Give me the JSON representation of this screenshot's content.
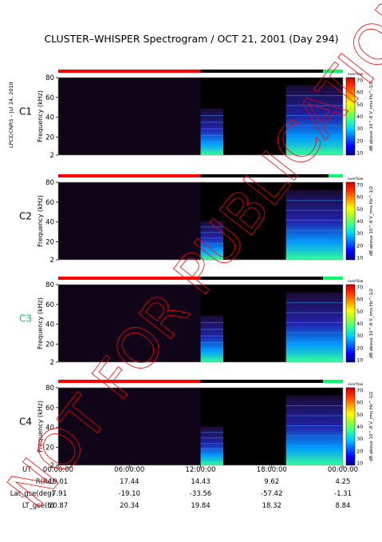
{
  "header": {
    "title": "CLUSTER–WHISPER Spectrogram / OCT 21, 2001 (Day 294)",
    "credit": "LPCE/CNRS – Jul 24, 2010"
  },
  "watermark": "NOT FOR PUBLICATION",
  "colors": {
    "background": "#000000",
    "status_red": "#ff0000",
    "status_black": "#000000",
    "status_green": "#00ff66",
    "c3_label": "#00cc66"
  },
  "chart_data": {
    "type": "heatmap",
    "xlabel": "UT",
    "ylabel": "Frequency (kHz)",
    "ylim": [
      2,
      80
    ],
    "yticks": [
      "2",
      "20",
      "40",
      "60",
      "80"
    ],
    "colorbar": {
      "label": "dB above 10^-8 V_rms Hz^-1/2",
      "ticks": [
        "10",
        "20",
        "30",
        "40",
        "50",
        "60",
        "70"
      ],
      "range": [
        10,
        70
      ],
      "overflow_label": "overflow"
    },
    "panels": [
      {
        "name": "C1",
        "label_color": "#000000",
        "status": [
          {
            "color": "#ff0000",
            "start": 0.0,
            "end": 0.5
          },
          {
            "color": "#000000",
            "start": 0.5,
            "end": 0.93
          },
          {
            "color": "#00ff66",
            "start": 0.93,
            "end": 1.0
          }
        ],
        "activity": [
          {
            "start": 0.5,
            "end": 0.58,
            "level": 0.6
          },
          {
            "start": 0.8,
            "end": 1.0,
            "level": 0.9
          }
        ]
      },
      {
        "name": "C2",
        "label_color": "#000000",
        "status": [
          {
            "color": "#ff0000",
            "start": 0.0,
            "end": 0.5
          },
          {
            "color": "#000000",
            "start": 0.5,
            "end": 0.95
          },
          {
            "color": "#00ff66",
            "start": 0.95,
            "end": 1.0
          }
        ],
        "activity": [
          {
            "start": 0.5,
            "end": 0.58,
            "level": 0.5
          },
          {
            "start": 0.8,
            "end": 1.0,
            "level": 0.9
          }
        ]
      },
      {
        "name": "C3",
        "label_color": "#00cc66",
        "status": [
          {
            "color": "#ff0000",
            "start": 0.0,
            "end": 0.5
          },
          {
            "color": "#000000",
            "start": 0.5,
            "end": 0.93
          },
          {
            "color": "#00ff66",
            "start": 0.93,
            "end": 1.0
          }
        ],
        "activity": [
          {
            "start": 0.5,
            "end": 0.58,
            "level": 0.6
          },
          {
            "start": 0.8,
            "end": 1.0,
            "level": 0.9
          }
        ]
      },
      {
        "name": "C4",
        "label_color": "#000000",
        "status": [
          {
            "color": "#ff0000",
            "start": 0.0,
            "end": 0.5
          },
          {
            "color": "#000000",
            "start": 0.5,
            "end": 0.93
          },
          {
            "color": "#00ff66",
            "start": 0.93,
            "end": 1.0
          }
        ],
        "activity": [
          {
            "start": 0.5,
            "end": 0.58,
            "level": 0.5
          },
          {
            "start": 0.8,
            "end": 1.0,
            "level": 0.9
          }
        ]
      }
    ],
    "x_ticks": [
      "00:00:00",
      "06:00:00",
      "12:00:00",
      "18:00:00",
      "00:00:00"
    ],
    "ephemeris": [
      {
        "label": "R(Re)",
        "values": [
          "19.01",
          "17.44",
          "14.43",
          "9.62",
          "4.25"
        ]
      },
      {
        "label": "Lat_gse(deg)",
        "values": [
          "-7.91",
          "-19.10",
          "-33.56",
          "-57.42",
          "-1.31"
        ]
      },
      {
        "label": "LT_gse(h)",
        "values": [
          "20.87",
          "20.34",
          "19.84",
          "18.32",
          "8.84"
        ]
      }
    ]
  }
}
